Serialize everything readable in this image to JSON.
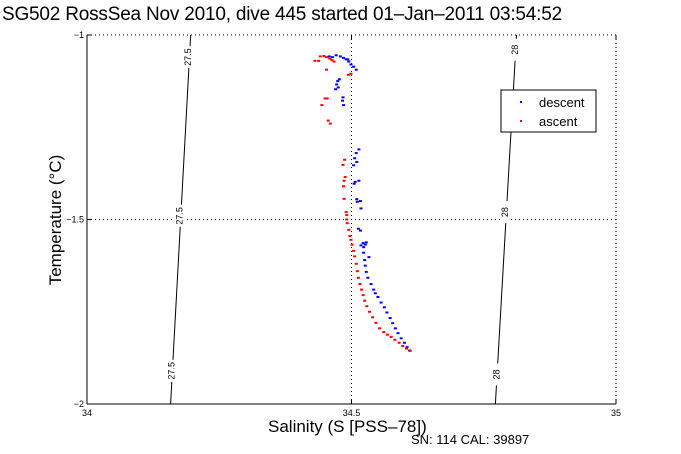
{
  "chart_data": {
    "type": "scatter",
    "title": "SG502 RossSea Nov 2010, dive 445 started 01–Jan–2011 03:54:52",
    "xlabel": "Salinity (S [PSS–78])",
    "ylabel": "Temperature (°C)",
    "xlim": [
      34,
      35
    ],
    "ylim": [
      -2,
      -1
    ],
    "x_ticks": [
      34,
      34.5,
      35
    ],
    "x_tick_labels": [
      "34",
      "34.5",
      "35"
    ],
    "y_ticks": [
      -1,
      -1.5,
      -2
    ],
    "y_tick_labels": [
      "−1",
      "−1.5",
      "−2"
    ],
    "grid": "dotted",
    "legend": {
      "position": "top-right",
      "entries": [
        "descent",
        "ascent"
      ]
    },
    "colors": {
      "descent": "#0000ff",
      "ascent": "#ff0000",
      "axes": "#000000",
      "contour": "#000000"
    },
    "isopycnals": [
      {
        "label": "27.5",
        "points": [
          [
            34.196,
            -1.0
          ],
          [
            34.158,
            -2.0
          ]
        ],
        "label_positions": [
          [
            34.191,
            -1.06
          ],
          [
            34.175,
            -1.49
          ],
          [
            34.16,
            -1.91
          ]
        ]
      },
      {
        "label": "28",
        "points": [
          [
            34.812,
            -1.0
          ],
          [
            34.772,
            -2.0
          ]
        ],
        "label_positions": [
          [
            34.809,
            -1.04
          ],
          [
            34.79,
            -1.48
          ],
          [
            34.774,
            -1.92
          ]
        ]
      }
    ],
    "series": [
      {
        "name": "descent",
        "points": [
          [
            34.47,
            -1.055
          ],
          [
            34.478,
            -1.058
          ],
          [
            34.484,
            -1.062
          ],
          [
            34.489,
            -1.066
          ],
          [
            34.494,
            -1.072
          ],
          [
            34.498,
            -1.08
          ],
          [
            34.503,
            -1.086
          ],
          [
            34.508,
            -1.094
          ],
          [
            34.463,
            -1.06
          ],
          [
            34.457,
            -1.058
          ],
          [
            34.492,
            -1.066
          ],
          [
            34.473,
            -1.125
          ],
          [
            34.471,
            -1.134
          ],
          [
            34.474,
            -1.142
          ],
          [
            34.469,
            -1.147
          ],
          [
            34.476,
            -1.12
          ],
          [
            34.483,
            -1.169
          ],
          [
            34.482,
            -1.178
          ],
          [
            34.484,
            -1.19
          ],
          [
            34.508,
            -1.32
          ],
          [
            34.513,
            -1.31
          ],
          [
            34.505,
            -1.334
          ],
          [
            34.509,
            -1.344
          ],
          [
            34.503,
            -1.353
          ],
          [
            34.506,
            -1.398
          ],
          [
            34.513,
            -1.395
          ],
          [
            34.504,
            -1.403
          ],
          [
            34.509,
            -1.445
          ],
          [
            34.51,
            -1.452
          ],
          [
            34.517,
            -1.47
          ],
          [
            34.516,
            -1.45
          ],
          [
            34.512,
            -1.525
          ],
          [
            34.516,
            -1.53
          ],
          [
            34.532,
            -1.602
          ],
          [
            34.521,
            -1.564
          ],
          [
            34.517,
            -1.57
          ],
          [
            34.522,
            -1.575
          ],
          [
            34.525,
            -1.568
          ],
          [
            34.527,
            -1.562
          ],
          [
            34.522,
            -1.59
          ],
          [
            34.524,
            -1.61
          ],
          [
            34.525,
            -1.625
          ],
          [
            34.527,
            -1.642
          ],
          [
            34.53,
            -1.658
          ],
          [
            34.536,
            -1.675
          ],
          [
            34.541,
            -1.69
          ],
          [
            34.544,
            -1.7
          ],
          [
            34.549,
            -1.71
          ],
          [
            34.555,
            -1.725
          ],
          [
            34.561,
            -1.738
          ],
          [
            34.566,
            -1.752
          ],
          [
            34.572,
            -1.767
          ],
          [
            34.577,
            -1.781
          ],
          [
            34.582,
            -1.795
          ],
          [
            34.587,
            -1.808
          ],
          [
            34.593,
            -1.822
          ],
          [
            34.599,
            -1.834
          ],
          [
            34.604,
            -1.846
          ],
          [
            34.609,
            -1.855
          ]
        ]
      },
      {
        "name": "ascent",
        "points": [
          [
            34.44,
            -1.058
          ],
          [
            34.447,
            -1.057
          ],
          [
            34.452,
            -1.06
          ],
          [
            34.458,
            -1.064
          ],
          [
            34.462,
            -1.068
          ],
          [
            34.466,
            -1.072
          ],
          [
            34.43,
            -1.07
          ],
          [
            34.437,
            -1.07
          ],
          [
            34.452,
            -1.094
          ],
          [
            34.498,
            -1.105
          ],
          [
            34.493,
            -1.108
          ],
          [
            34.449,
            -1.172
          ],
          [
            34.453,
            -1.172
          ],
          [
            34.443,
            -1.19
          ],
          [
            34.455,
            -1.232
          ],
          [
            34.459,
            -1.24
          ],
          [
            34.486,
            -1.338
          ],
          [
            34.483,
            -1.352
          ],
          [
            34.487,
            -1.385
          ],
          [
            34.485,
            -1.395
          ],
          [
            34.484,
            -1.41
          ],
          [
            34.485,
            -1.444
          ],
          [
            34.489,
            -1.48
          ],
          [
            34.49,
            -1.488
          ],
          [
            34.49,
            -1.5
          ],
          [
            34.491,
            -1.51
          ],
          [
            34.494,
            -1.528
          ],
          [
            34.496,
            -1.545
          ],
          [
            34.498,
            -1.555
          ],
          [
            34.5,
            -1.568
          ],
          [
            34.503,
            -1.585
          ],
          [
            34.505,
            -1.6
          ],
          [
            34.508,
            -1.62
          ],
          [
            34.51,
            -1.64
          ],
          [
            34.512,
            -1.658
          ],
          [
            34.515,
            -1.675
          ],
          [
            34.518,
            -1.69
          ],
          [
            34.521,
            -1.705
          ],
          [
            34.524,
            -1.72
          ],
          [
            34.528,
            -1.735
          ],
          [
            34.533,
            -1.75
          ],
          [
            34.539,
            -1.765
          ],
          [
            34.545,
            -1.78
          ],
          [
            34.552,
            -1.795
          ],
          [
            34.56,
            -1.805
          ],
          [
            34.567,
            -1.812
          ],
          [
            34.574,
            -1.818
          ],
          [
            34.581,
            -1.826
          ],
          [
            34.589,
            -1.834
          ],
          [
            34.596,
            -1.843
          ],
          [
            34.603,
            -1.85
          ],
          [
            34.61,
            -1.856
          ]
        ]
      }
    ]
  },
  "footer": {
    "note": "SN: 114  CAL: 39897"
  }
}
